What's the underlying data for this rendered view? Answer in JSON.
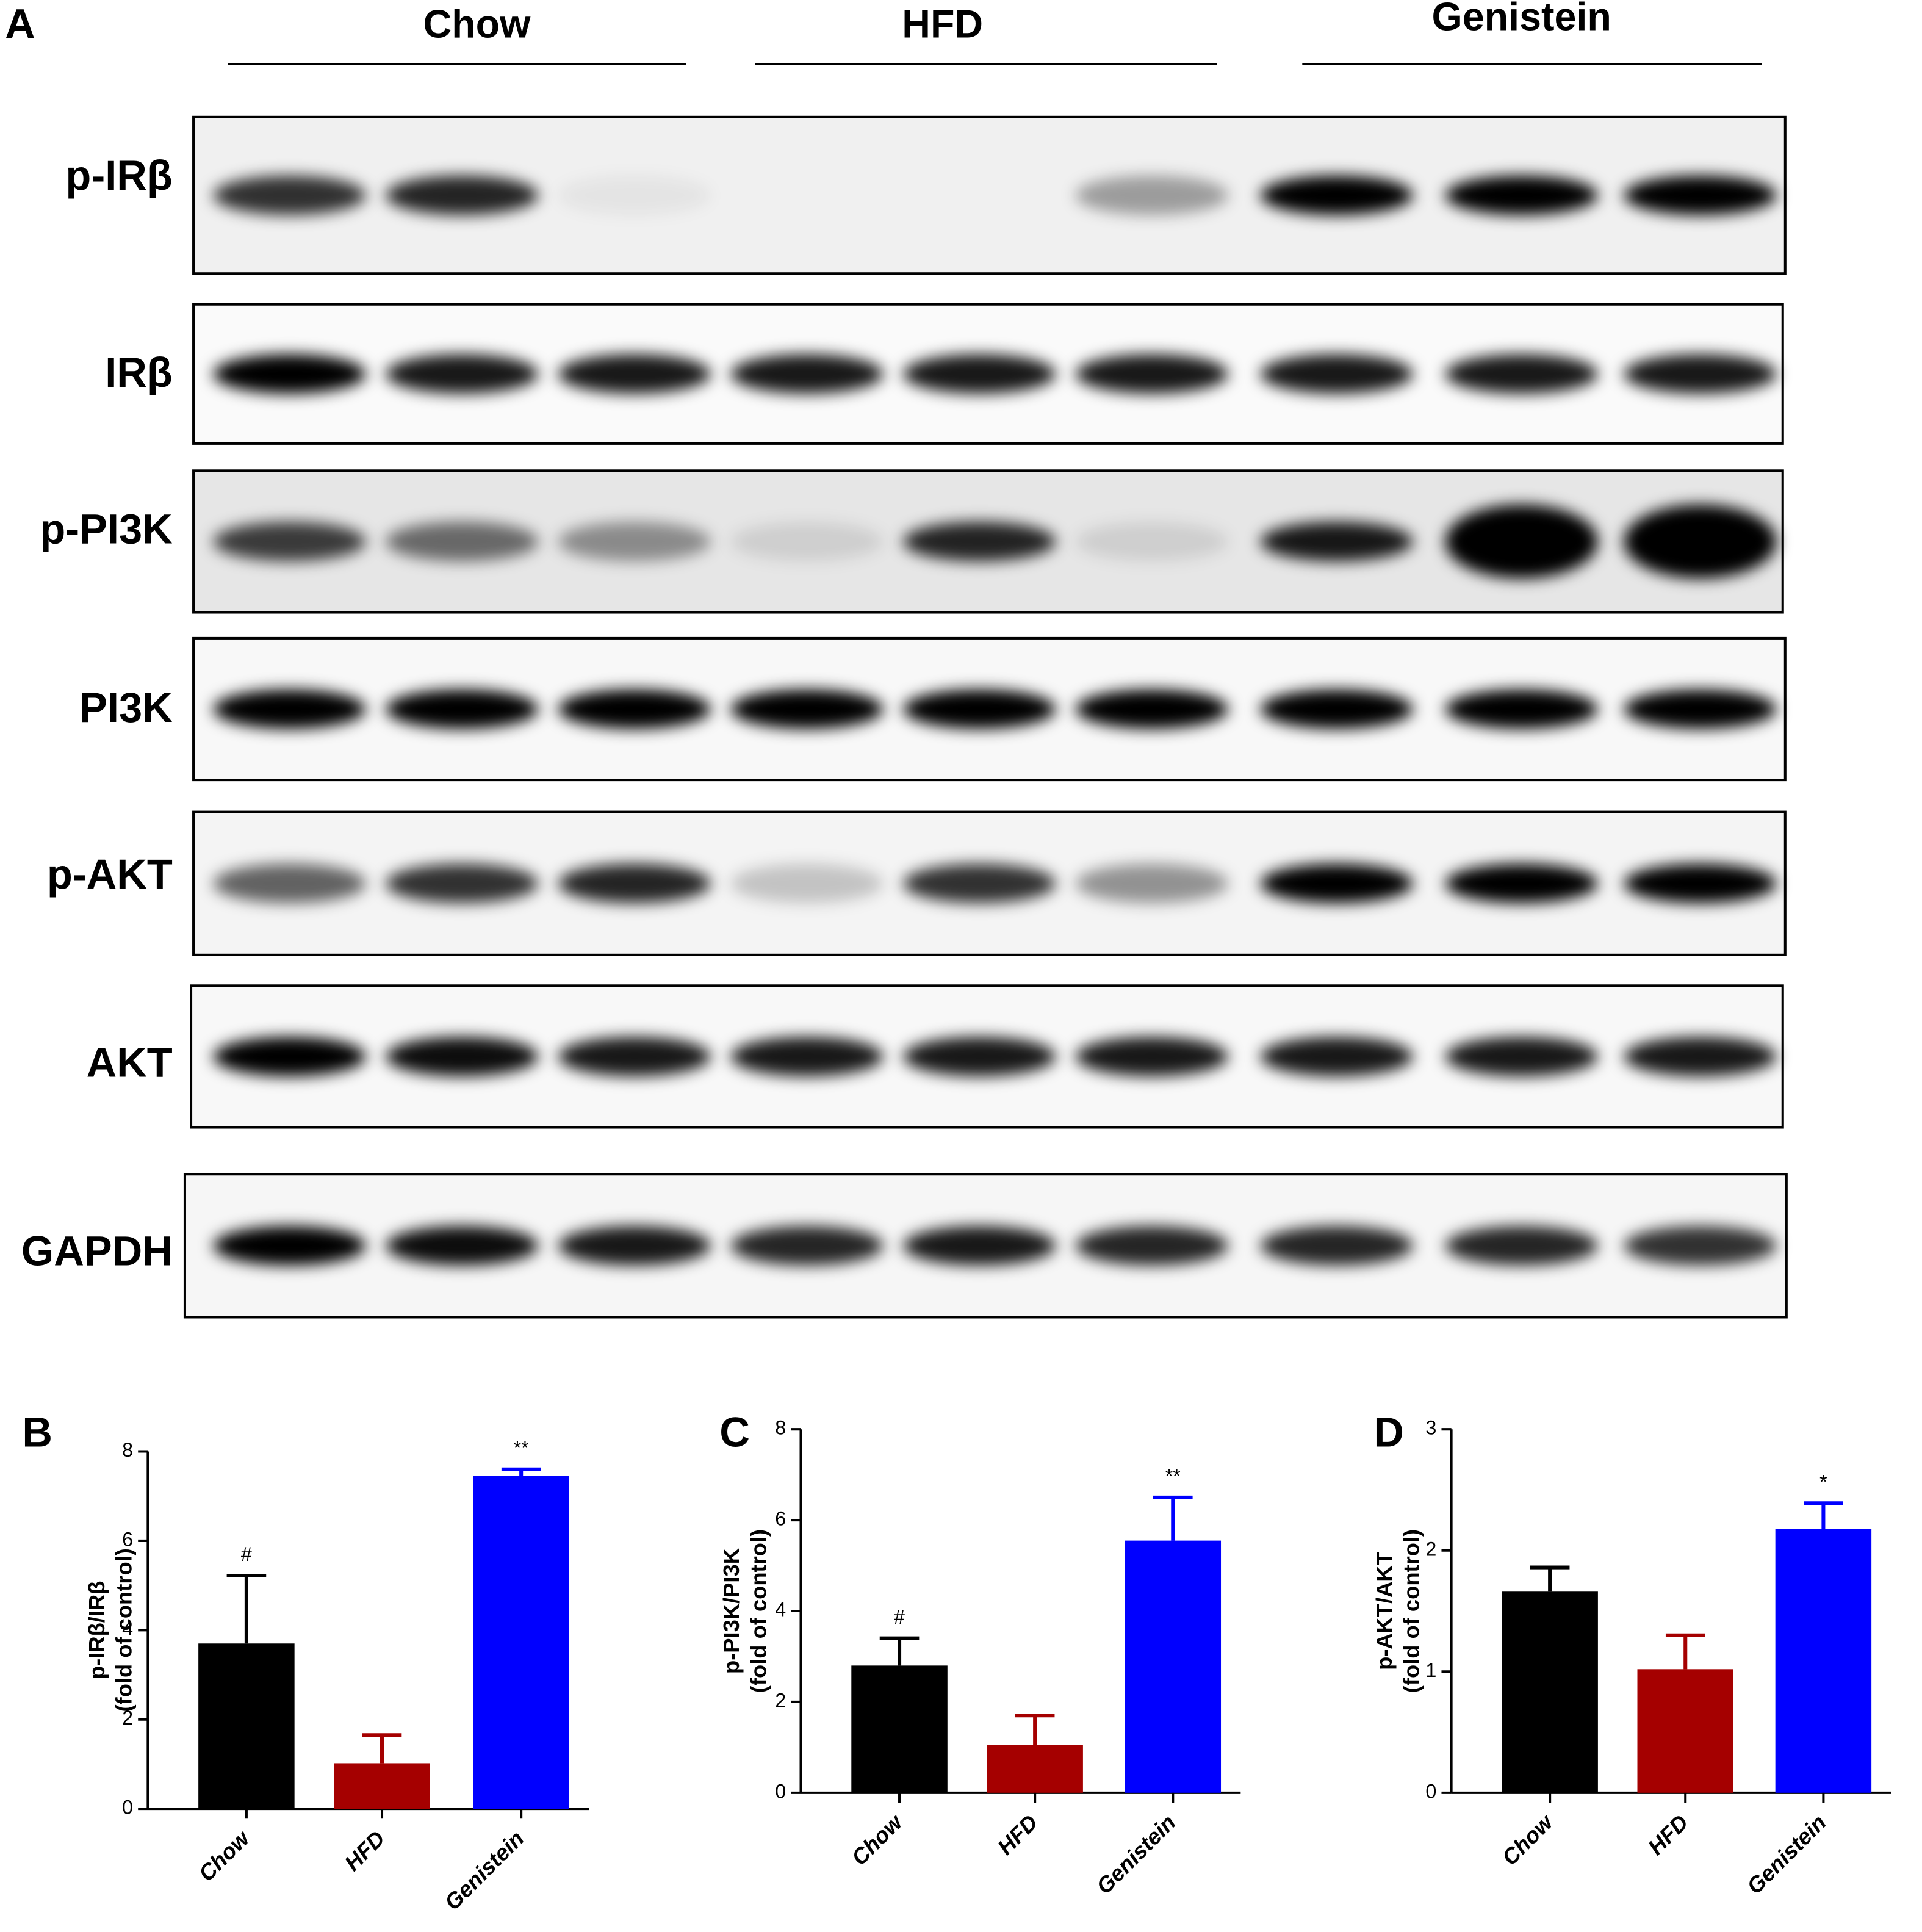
{
  "panel_a": {
    "label": "A",
    "groups": [
      "Chow",
      "HFD",
      "Genistein"
    ],
    "blots": [
      "p-IRβ",
      "IRβ",
      "p-PI3K",
      "PI3K",
      "p-AKT",
      "AKT",
      "GAPDH"
    ]
  },
  "chart_data": [
    {
      "type": "bar",
      "panel_label": "B",
      "y_label": [
        "p-IRβ/IRβ",
        "(fold of control)"
      ],
      "categories": [
        "Chow",
        "HFD",
        "Genistein"
      ],
      "values": [
        3.7,
        1.02,
        7.45
      ],
      "errors": [
        1.52,
        0.63,
        0.15
      ],
      "colors": [
        "#000000",
        "#a50000",
        "#0000ff"
      ],
      "bar_labels": [
        "#",
        null,
        "**"
      ],
      "ylim": [
        0,
        8
      ],
      "yticks": [
        0,
        2,
        4,
        6,
        8
      ]
    },
    {
      "type": "bar",
      "panel_label": "C",
      "y_label": [
        "p-PI3K/PI3K",
        "(fold of control)"
      ],
      "categories": [
        "Chow",
        "HFD",
        "Genistein"
      ],
      "values": [
        2.8,
        1.05,
        5.55
      ],
      "errors": [
        0.6,
        0.65,
        0.95
      ],
      "colors": [
        "#000000",
        "#a50000",
        "#0000ff"
      ],
      "bar_labels": [
        "#",
        null,
        "**"
      ],
      "ylim": [
        0,
        8
      ],
      "yticks": [
        0,
        2,
        4,
        6,
        8
      ]
    },
    {
      "type": "bar",
      "panel_label": "D",
      "y_label": [
        "p-AKT/AKT",
        "(fold of control)"
      ],
      "categories": [
        "Chow",
        "HFD",
        "Genistein"
      ],
      "values": [
        1.66,
        1.02,
        2.18
      ],
      "errors": [
        0.2,
        0.28,
        0.21
      ],
      "colors": [
        "#000000",
        "#a50000",
        "#0000ff"
      ],
      "bar_labels": [
        null,
        null,
        "*"
      ],
      "ylim": [
        0,
        3
      ],
      "yticks": [
        0,
        1,
        2,
        3
      ]
    }
  ]
}
